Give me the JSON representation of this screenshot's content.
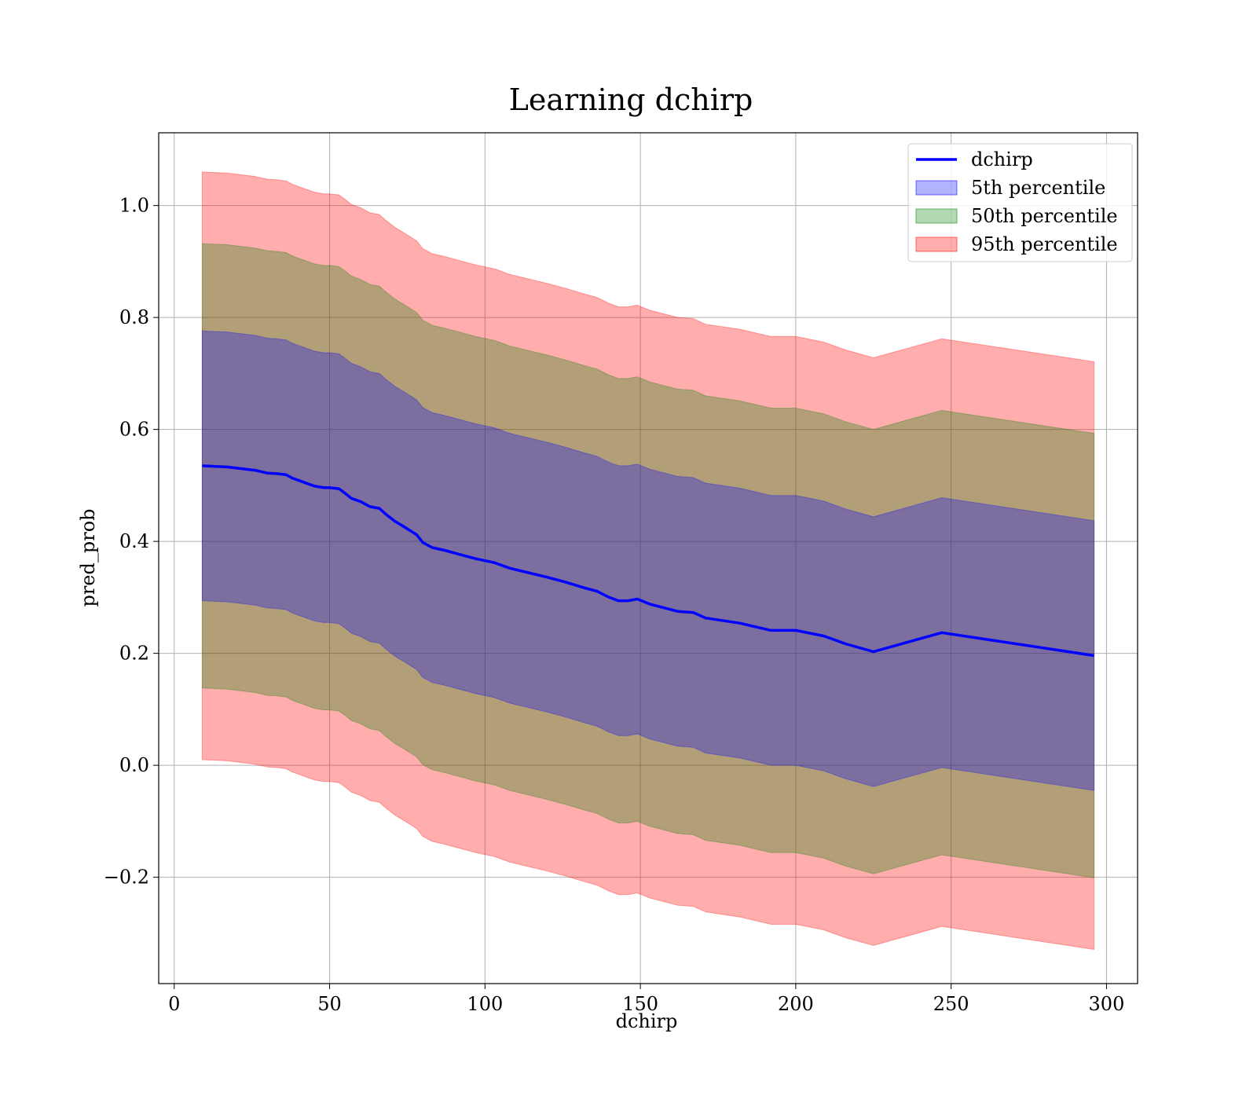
{
  "chart_data": {
    "type": "line",
    "title": "Learning dchirp",
    "xlabel": "dchirp",
    "ylabel": "pred_prob",
    "xlim": [
      -5,
      310
    ],
    "ylim": [
      -0.39,
      1.13
    ],
    "xticks": [
      0,
      50,
      100,
      150,
      200,
      250,
      300
    ],
    "xtick_labels": [
      "0",
      "50",
      "100",
      "150",
      "200",
      "250",
      "300"
    ],
    "yticks": [
      -0.2,
      0.0,
      0.2,
      0.4,
      0.6,
      0.8,
      1.0
    ],
    "ytick_labels": [
      "−0.2",
      "0.0",
      "0.2",
      "0.4",
      "0.6",
      "0.8",
      "1.0"
    ],
    "grid": true,
    "legend_position": "top-right",
    "colors": {
      "line": "#0000ff",
      "band_5th": "#0000ff",
      "band_50th": "#008000",
      "band_95th": "#ff0000"
    },
    "x": [
      9,
      17,
      26,
      30,
      33,
      36,
      38,
      42,
      45,
      48,
      50,
      53,
      55,
      57,
      60,
      63,
      66,
      68,
      71,
      74,
      78,
      80,
      83,
      87,
      91,
      97,
      103,
      108,
      114,
      120,
      126,
      132,
      136,
      140,
      143,
      146,
      149,
      153,
      162,
      167,
      171,
      182,
      192,
      200,
      209,
      216,
      225,
      247,
      296
    ],
    "series": [
      {
        "name": "dchirp",
        "values": [
          0.535,
          0.533,
          0.527,
          0.522,
          0.521,
          0.519,
          0.513,
          0.505,
          0.499,
          0.496,
          0.496,
          0.494,
          0.486,
          0.477,
          0.471,
          0.462,
          0.459,
          0.449,
          0.436,
          0.426,
          0.412,
          0.398,
          0.389,
          0.384,
          0.378,
          0.369,
          0.362,
          0.352,
          0.344,
          0.336,
          0.327,
          0.317,
          0.311,
          0.3,
          0.294,
          0.294,
          0.297,
          0.288,
          0.275,
          0.273,
          0.263,
          0.254,
          0.241,
          0.241,
          0.231,
          0.217,
          0.203,
          0.237,
          0.196
        ]
      }
    ],
    "bands": [
      {
        "name": "95th percentile",
        "half_width": 0.525,
        "alpha": 0.32
      },
      {
        "name": "50th percentile",
        "half_width": 0.397,
        "alpha": 0.3
      },
      {
        "name": "5th percentile",
        "half_width": 0.241,
        "alpha": 0.3
      }
    ],
    "legend": [
      "dchirp",
      "5th percentile",
      "50th percentile",
      "95th percentile"
    ]
  }
}
